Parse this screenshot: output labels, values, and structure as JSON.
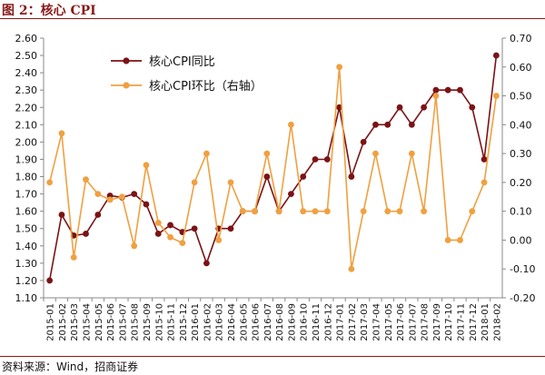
{
  "header": {
    "title": "图 2：核心 CPI"
  },
  "footer": {
    "source": "资料来源：Wind，招商证券"
  },
  "chart_data": {
    "type": "line",
    "title": "",
    "xlabel": "",
    "ylabel": "",
    "categories": [
      "2015-01",
      "2015-02",
      "2015-03",
      "2015-04",
      "2015-05",
      "2015-06",
      "2015-07",
      "2015-08",
      "2015-09",
      "2015-10",
      "2015-11",
      "2015-12",
      "2016-01",
      "2016-02",
      "2016-03",
      "2016-04",
      "2016-05",
      "2016-06",
      "2016-07",
      "2016-08",
      "2016-09",
      "2016-10",
      "2016-11",
      "2016-12",
      "2017-01",
      "2017-02",
      "2017-03",
      "2017-04",
      "2017-05",
      "2017-06",
      "2017-07",
      "2017-08",
      "2017-09",
      "2017-10",
      "2017-11",
      "2017-12",
      "2018-01",
      "2018-02"
    ],
    "left_axis": {
      "ylim": [
        1.1,
        2.6
      ],
      "ticks": [
        "1.10",
        "1.20",
        "1.30",
        "1.40",
        "1.50",
        "1.60",
        "1.70",
        "1.80",
        "1.90",
        "2.00",
        "2.10",
        "2.20",
        "2.30",
        "2.40",
        "2.50",
        "2.60"
      ]
    },
    "right_axis": {
      "ylim": [
        -0.2,
        0.7
      ],
      "ticks": [
        "-0.20",
        "-0.10",
        "0.00",
        "0.10",
        "0.20",
        "0.30",
        "0.40",
        "0.50",
        "0.60",
        "0.70"
      ]
    },
    "grid": false,
    "legend_position": "top-left",
    "series": [
      {
        "name": "核心CPI同比",
        "axis": "left",
        "color": "#7b1316",
        "values": [
          1.2,
          1.58,
          1.46,
          1.47,
          1.58,
          1.69,
          1.68,
          1.7,
          1.64,
          1.47,
          1.52,
          1.48,
          1.5,
          1.3,
          1.5,
          1.5,
          1.6,
          1.6,
          1.8,
          1.6,
          1.7,
          1.8,
          1.9,
          1.9,
          2.2,
          1.8,
          2.0,
          2.1,
          2.1,
          2.2,
          2.1,
          2.2,
          2.3,
          2.3,
          2.3,
          2.2,
          1.9,
          2.5
        ]
      },
      {
        "name": "核心CPI环比（右轴）",
        "axis": "right",
        "color": "#f0a040",
        "values": [
          0.2,
          0.37,
          -0.06,
          0.21,
          0.16,
          0.14,
          0.15,
          -0.02,
          0.26,
          0.06,
          0.01,
          -0.01,
          0.2,
          0.3,
          0.0,
          0.2,
          0.1,
          0.1,
          0.3,
          0.1,
          0.4,
          0.1,
          0.1,
          0.1,
          0.6,
          -0.1,
          0.1,
          0.3,
          0.1,
          0.1,
          0.3,
          0.1,
          0.5,
          0.0,
          0.0,
          0.1,
          0.2,
          0.5
        ]
      }
    ]
  }
}
